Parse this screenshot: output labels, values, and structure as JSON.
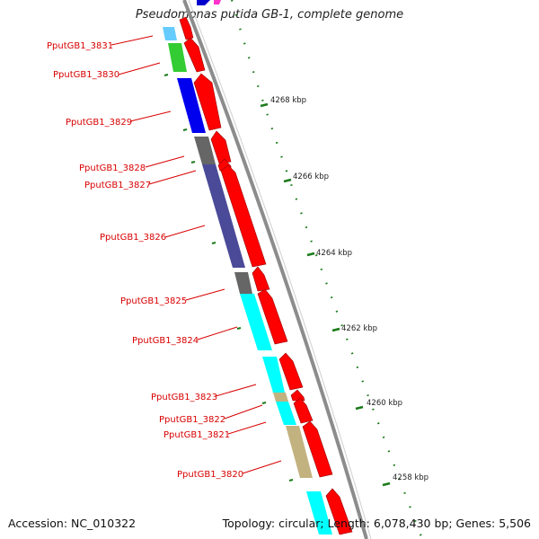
{
  "title": "Pseudomonas putida GB-1, complete genome",
  "accession": "Accession: NC_010322",
  "topology": "Topology: circular; Length: 6,078,430 bp; Genes: 5,506",
  "colors": {
    "forward_gene": "#ff0000",
    "backbone": "#8c8c8c",
    "tick": "#1a7a1a",
    "label": "#d80000"
  },
  "gene_labels": [
    {
      "id": "PputGB1_3831"
    },
    {
      "id": "PputGB1_3830"
    },
    {
      "id": "PputGB1_3829"
    },
    {
      "id": "PputGB1_3828"
    },
    {
      "id": "PputGB1_3827"
    },
    {
      "id": "PputGB1_3826"
    },
    {
      "id": "PputGB1_3825"
    },
    {
      "id": "PputGB1_3824"
    },
    {
      "id": "PputGB1_3823"
    },
    {
      "id": "PputGB1_3822"
    },
    {
      "id": "PputGB1_3821"
    },
    {
      "id": "PputGB1_3820"
    }
  ],
  "kbp_labels": [
    "4268 kbp",
    "4266 kbp",
    "4264 kbp",
    "4262 kbp",
    "4260 kbp",
    "4258 kbp"
  ]
}
